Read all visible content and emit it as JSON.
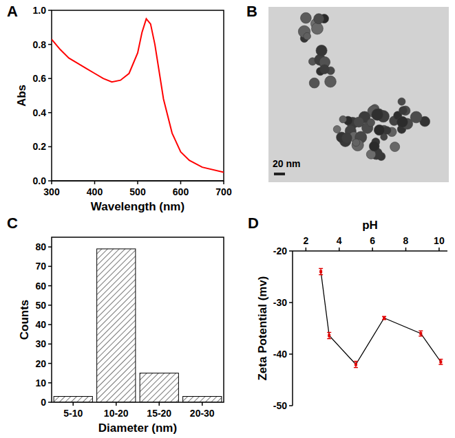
{
  "chart_data": [
    {
      "panel": "A",
      "type": "line",
      "x_label": "Wavelength (nm)",
      "y_label": "Abs",
      "x": [
        300,
        320,
        340,
        360,
        380,
        400,
        420,
        440,
        460,
        480,
        500,
        510,
        520,
        530,
        540,
        550,
        560,
        580,
        600,
        620,
        650,
        700
      ],
      "values": [
        0.83,
        0.77,
        0.72,
        0.69,
        0.66,
        0.63,
        0.6,
        0.58,
        0.59,
        0.63,
        0.75,
        0.87,
        0.95,
        0.92,
        0.8,
        0.64,
        0.48,
        0.28,
        0.17,
        0.12,
        0.08,
        0.05
      ],
      "color": "#ff0000",
      "xlim": [
        300,
        700
      ],
      "xticks": [
        300,
        400,
        500,
        600,
        700
      ],
      "ylim": [
        0,
        1.0
      ],
      "yticks": [
        {
          "value": 0,
          "label": "0.0"
        },
        {
          "value": 0.2,
          "label": "0.2"
        },
        {
          "value": 0.4,
          "label": "0.4"
        },
        {
          "value": 0.6,
          "label": "0.6"
        },
        {
          "value": 0.8,
          "label": "0.8"
        },
        {
          "value": 1.0,
          "label": "1.0"
        }
      ]
    },
    {
      "panel": "B",
      "type": "image",
      "scale_bar": "20 nm"
    },
    {
      "panel": "C",
      "type": "bar",
      "x_label": "Diameter (nm)",
      "y_label": "Counts",
      "categories": [
        "5-10",
        "10-20",
        "15-20",
        "20-30"
      ],
      "values": [
        3,
        79,
        15,
        3
      ],
      "color": "#000000",
      "ylim": [
        0,
        85
      ],
      "yticks": [
        0,
        10,
        20,
        30,
        40,
        50,
        60,
        70,
        80
      ]
    },
    {
      "panel": "D",
      "type": "line",
      "x_label": "pH",
      "y_label": "Zeta Potential (mv)",
      "x": [
        2.9,
        3.4,
        5.0,
        6.7,
        8.9,
        10.1
      ],
      "values": [
        -24,
        -36.4,
        -42,
        -33,
        -36,
        -41.5
      ],
      "errors": [
        0.6,
        0.6,
        0.6,
        0.3,
        0.5,
        0.5
      ],
      "color": "#000000",
      "xlim": [
        1.2,
        10.5
      ],
      "xticks": [
        2,
        4,
        6,
        8,
        10
      ],
      "ylim": [
        -50,
        -20
      ],
      "yticks": [
        -20,
        -30,
        -40,
        -50
      ]
    }
  ]
}
